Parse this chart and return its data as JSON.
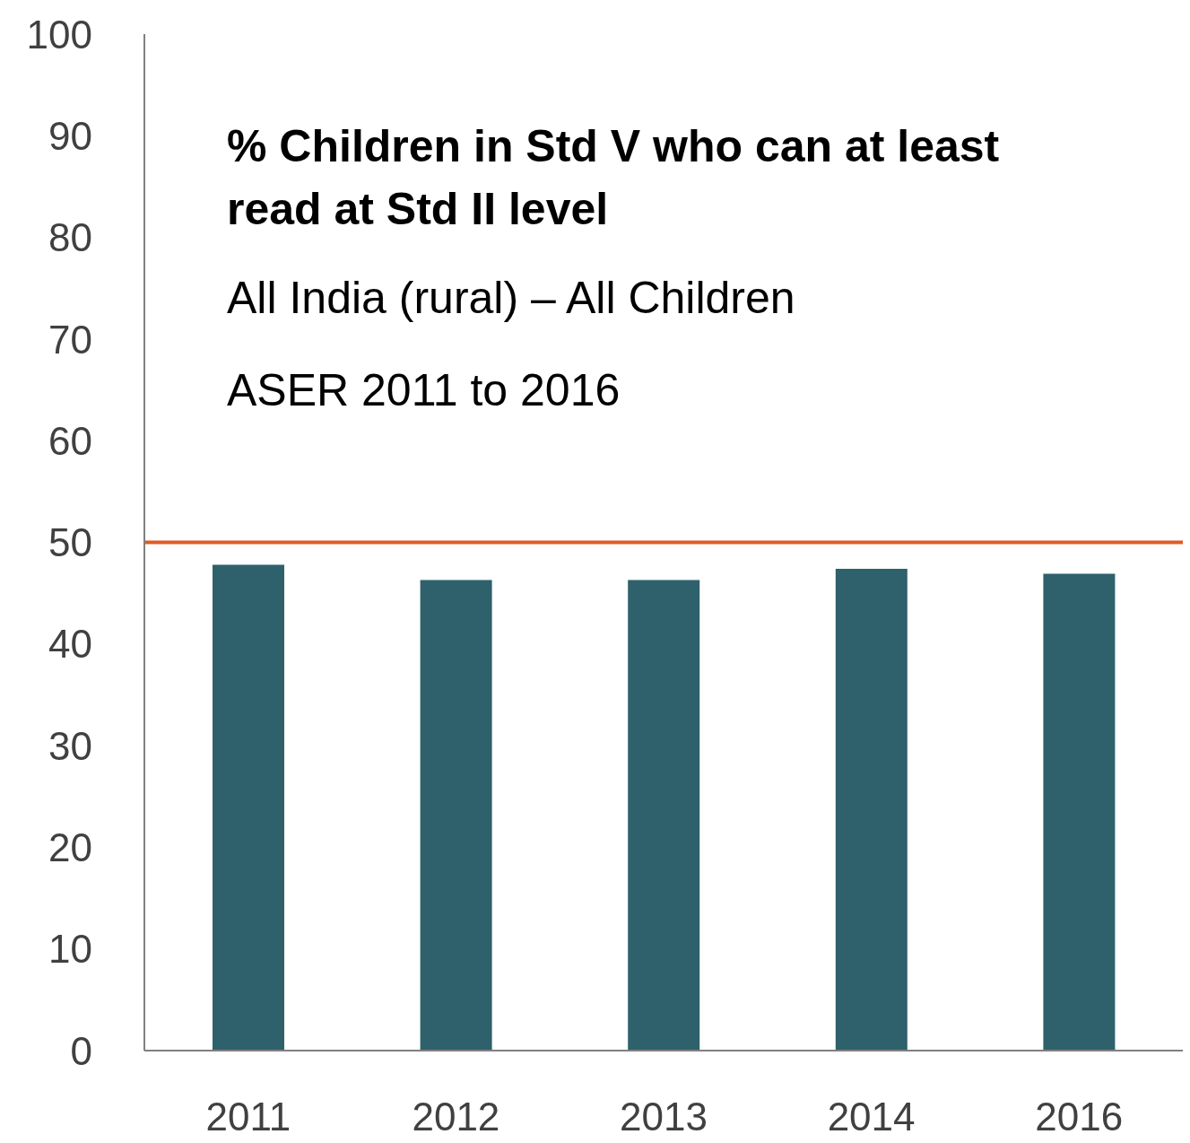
{
  "chart_data": {
    "type": "bar",
    "title": "% Children in Std V who can at least read at Std II level",
    "subtitle": "All India (rural) – All Children",
    "annotations": [
      "ASER 2011 to 2016"
    ],
    "categories": [
      "2011",
      "2012",
      "2013",
      "2014",
      "2016"
    ],
    "values": [
      47.8,
      46.3,
      46.3,
      47.4,
      46.9
    ],
    "color": "#2e616b",
    "ylim": [
      0,
      100
    ],
    "yticks": [
      0,
      10,
      20,
      30,
      40,
      50,
      60,
      70,
      80,
      90,
      100
    ],
    "grid": false,
    "ref_lines": [
      {
        "axis": "y",
        "value": 50,
        "color": "#e05a27"
      }
    ]
  }
}
